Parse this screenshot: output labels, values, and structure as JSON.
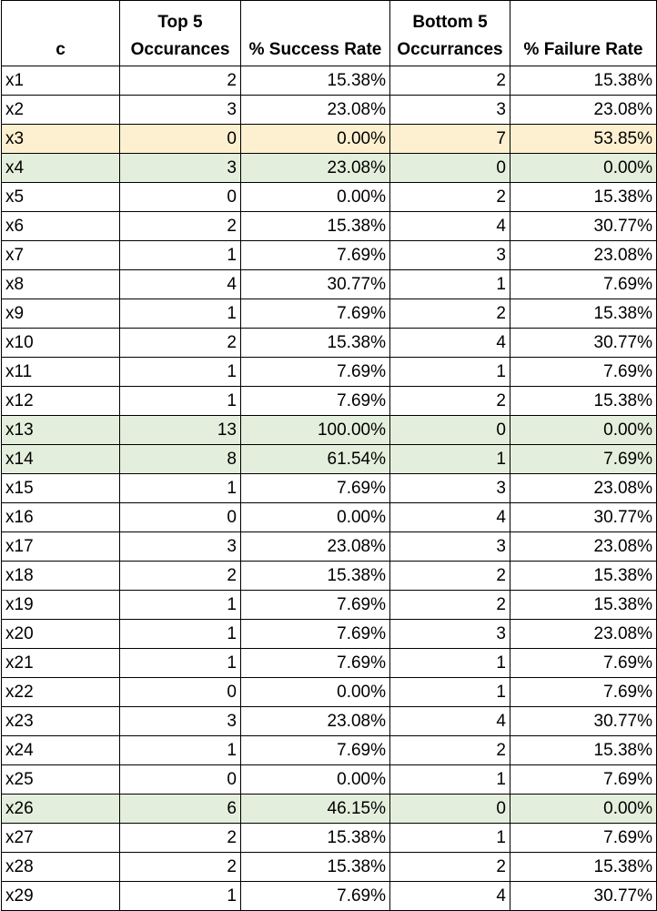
{
  "headers": {
    "name": "c",
    "top_occurrences": "Top 5\nOccurances",
    "success_rate": "% Success Rate",
    "bottom_occurrences": "Bottom 5\nOccurrances",
    "failure_rate": "% Failure Rate"
  },
  "highlight_colors": {
    "orange": "#fdf0d0",
    "green": "#e4eedc"
  },
  "rows": [
    {
      "name": "x1",
      "top": "2",
      "success": "15.38%",
      "bottom": "2",
      "failure": "15.38%",
      "highlight": ""
    },
    {
      "name": "x2",
      "top": "3",
      "success": "23.08%",
      "bottom": "3",
      "failure": "23.08%",
      "highlight": ""
    },
    {
      "name": "x3",
      "top": "0",
      "success": "0.00%",
      "bottom": "7",
      "failure": "53.85%",
      "highlight": "orange"
    },
    {
      "name": "x4",
      "top": "3",
      "success": "23.08%",
      "bottom": "0",
      "failure": "0.00%",
      "highlight": "green"
    },
    {
      "name": "x5",
      "top": "0",
      "success": "0.00%",
      "bottom": "2",
      "failure": "15.38%",
      "highlight": ""
    },
    {
      "name": "x6",
      "top": "2",
      "success": "15.38%",
      "bottom": "4",
      "failure": "30.77%",
      "highlight": ""
    },
    {
      "name": "x7",
      "top": "1",
      "success": "7.69%",
      "bottom": "3",
      "failure": "23.08%",
      "highlight": ""
    },
    {
      "name": "x8",
      "top": "4",
      "success": "30.77%",
      "bottom": "1",
      "failure": "7.69%",
      "highlight": ""
    },
    {
      "name": "x9",
      "top": "1",
      "success": "7.69%",
      "bottom": "2",
      "failure": "15.38%",
      "highlight": ""
    },
    {
      "name": "x10",
      "top": "2",
      "success": "15.38%",
      "bottom": "4",
      "failure": "30.77%",
      "highlight": ""
    },
    {
      "name": "x11",
      "top": "1",
      "success": "7.69%",
      "bottom": "1",
      "failure": "7.69%",
      "highlight": ""
    },
    {
      "name": "x12",
      "top": "1",
      "success": "7.69%",
      "bottom": "2",
      "failure": "15.38%",
      "highlight": ""
    },
    {
      "name": "x13",
      "top": "13",
      "success": "100.00%",
      "bottom": "0",
      "failure": "0.00%",
      "highlight": "green"
    },
    {
      "name": "x14",
      "top": "8",
      "success": "61.54%",
      "bottom": "1",
      "failure": "7.69%",
      "highlight": "green"
    },
    {
      "name": "x15",
      "top": "1",
      "success": "7.69%",
      "bottom": "3",
      "failure": "23.08%",
      "highlight": ""
    },
    {
      "name": "x16",
      "top": "0",
      "success": "0.00%",
      "bottom": "4",
      "failure": "30.77%",
      "highlight": ""
    },
    {
      "name": "x17",
      "top": "3",
      "success": "23.08%",
      "bottom": "3",
      "failure": "23.08%",
      "highlight": ""
    },
    {
      "name": "x18",
      "top": "2",
      "success": "15.38%",
      "bottom": "2",
      "failure": "15.38%",
      "highlight": ""
    },
    {
      "name": "x19",
      "top": "1",
      "success": "7.69%",
      "bottom": "2",
      "failure": "15.38%",
      "highlight": ""
    },
    {
      "name": "x20",
      "top": "1",
      "success": "7.69%",
      "bottom": "3",
      "failure": "23.08%",
      "highlight": ""
    },
    {
      "name": "x21",
      "top": "1",
      "success": "7.69%",
      "bottom": "1",
      "failure": "7.69%",
      "highlight": ""
    },
    {
      "name": "x22",
      "top": "0",
      "success": "0.00%",
      "bottom": "1",
      "failure": "7.69%",
      "highlight": ""
    },
    {
      "name": "x23",
      "top": "3",
      "success": "23.08%",
      "bottom": "4",
      "failure": "30.77%",
      "highlight": ""
    },
    {
      "name": "x24",
      "top": "1",
      "success": "7.69%",
      "bottom": "2",
      "failure": "15.38%",
      "highlight": ""
    },
    {
      "name": "x25",
      "top": "0",
      "success": "0.00%",
      "bottom": "1",
      "failure": "7.69%",
      "highlight": ""
    },
    {
      "name": "x26",
      "top": "6",
      "success": "46.15%",
      "bottom": "0",
      "failure": "0.00%",
      "highlight": "green"
    },
    {
      "name": "x27",
      "top": "2",
      "success": "15.38%",
      "bottom": "1",
      "failure": "7.69%",
      "highlight": ""
    },
    {
      "name": "x28",
      "top": "2",
      "success": "15.38%",
      "bottom": "2",
      "failure": "15.38%",
      "highlight": ""
    },
    {
      "name": "x29",
      "top": "1",
      "success": "7.69%",
      "bottom": "4",
      "failure": "30.77%",
      "highlight": ""
    }
  ]
}
